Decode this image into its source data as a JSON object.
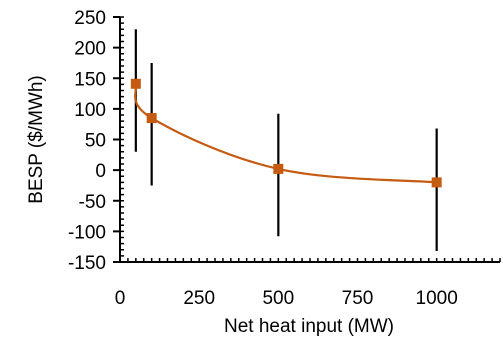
{
  "chart_data": {
    "type": "scatter",
    "title": "",
    "xlabel": "Net heat input (MW)",
    "ylabel": "BESP ($/MWh)",
    "xlim": [
      0,
      1200
    ],
    "ylim": [
      -150,
      250
    ],
    "x_ticks": [
      0,
      250,
      500,
      750,
      1000
    ],
    "y_ticks": [
      250,
      200,
      150,
      100,
      50,
      0,
      -50,
      -100,
      -150
    ],
    "grid": false,
    "legend": "none",
    "colors": {
      "series": "#c55a11",
      "error_bar": "#000000",
      "axis": "#000000"
    },
    "series": [
      {
        "x": [
          50,
          100,
          500,
          1000
        ],
        "y": [
          141,
          85,
          2,
          -20
        ],
        "y_err_low": [
          30,
          -25,
          -108,
          -132
        ],
        "y_err_high": [
          230,
          175,
          92,
          68
        ],
        "marker": "square",
        "smooth_line": true
      }
    ]
  }
}
